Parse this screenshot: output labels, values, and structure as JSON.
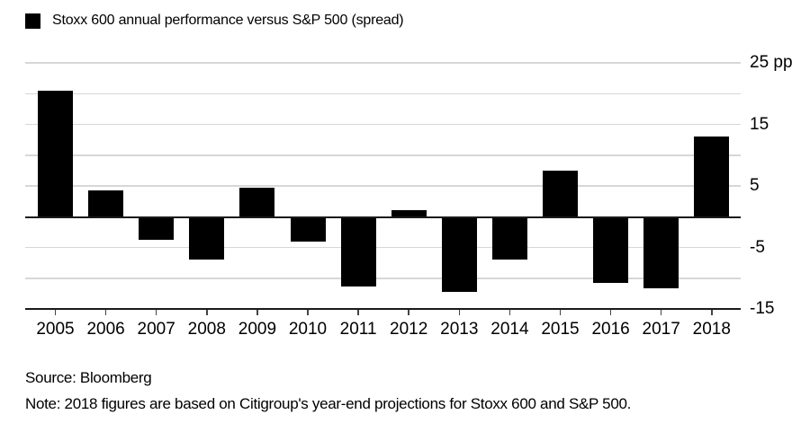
{
  "legend": {
    "swatch_icon": "black-square",
    "label": "Stoxx 600 annual performance versus S&P 500 (spread)"
  },
  "chart_data": {
    "type": "bar",
    "title": "Stoxx 600 annual performance versus S&P 500 (spread)",
    "categories": [
      "2005",
      "2006",
      "2007",
      "2008",
      "2009",
      "2010",
      "2011",
      "2012",
      "2013",
      "2014",
      "2015",
      "2016",
      "2017",
      "2018"
    ],
    "values": [
      20.5,
      4.2,
      -3.8,
      -7.0,
      4.7,
      -4.0,
      -11.3,
      1.0,
      -12.2,
      -7.0,
      7.5,
      -10.7,
      -11.7,
      13.0
    ],
    "unit": "pp",
    "xlabel": "",
    "ylabel": "",
    "ylim": [
      -15,
      25
    ],
    "gridline_step": 5,
    "grid": true,
    "y_axis_side": "right",
    "y_tick_labels": [
      {
        "value": 25,
        "label": "25 pp"
      },
      {
        "value": 15,
        "label": "15"
      },
      {
        "value": 5,
        "label": "5"
      },
      {
        "value": -5,
        "label": "-5"
      },
      {
        "value": -15,
        "label": "-15"
      }
    ],
    "bar_color": "#000000",
    "legend_position": "top-left"
  },
  "footer": {
    "source": "Source: Bloomberg",
    "note": "Note: 2018 figures are based on Citigroup's year-end projections for Stoxx 600 and S&P 500."
  },
  "colors": {
    "bar": "#000000",
    "gridline": "#d7d7d7",
    "zero_line": "#1a1a1a",
    "axis_line": "#1a1a1a",
    "text": "#000000",
    "background": "#ffffff"
  }
}
